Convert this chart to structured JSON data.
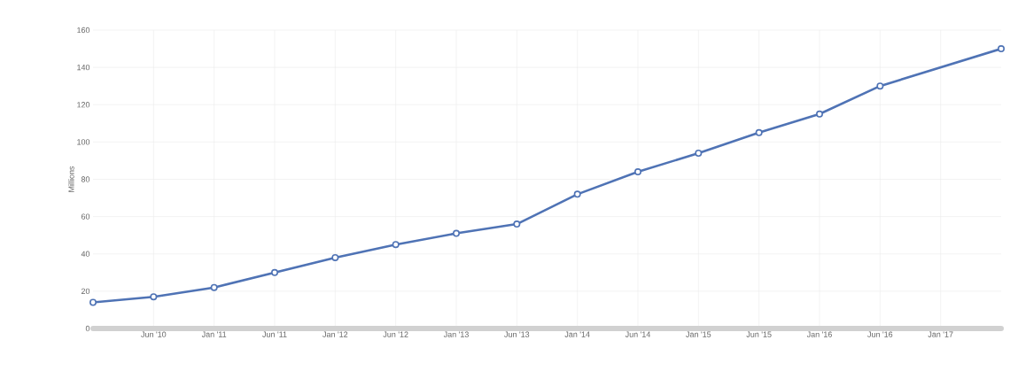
{
  "chart_data": {
    "type": "line",
    "ylabel": "Millions",
    "categories": [
      null,
      "Jun '10",
      "Jan '11",
      "Jun '11",
      "Jan '12",
      "Jun '12",
      "Jan '13",
      "Jun '13",
      "Jan '14",
      "Jun '14",
      "Jan '15",
      "Jun '15",
      "Jan '16",
      "Jun '16",
      "Jan '17",
      null
    ],
    "series": [
      {
        "color": "#4f73b5",
        "values": [
          14,
          17,
          22,
          30,
          38,
          45,
          51,
          56,
          72,
          84,
          94,
          105,
          115,
          130,
          null,
          150
        ]
      }
    ],
    "ylim": [
      0,
      160
    ],
    "yticks": [
      0,
      20,
      40,
      60,
      80,
      100,
      120,
      140,
      160
    ],
    "grid": true,
    "marker": "circle",
    "line_style": "solid"
  }
}
